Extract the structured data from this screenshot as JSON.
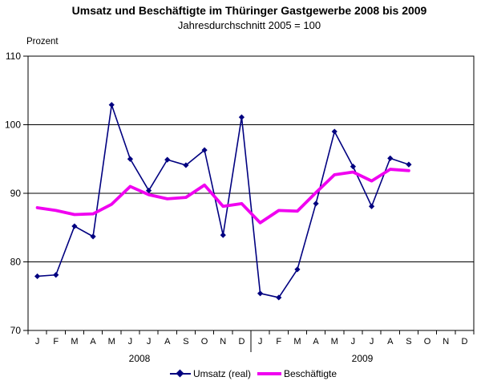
{
  "header": {
    "title": "Umsatz und Beschäftigte im Thüringer Gastgewerbe 2008 bis 2009",
    "subtitle": "Jahresdurchschnitt 2005 = 100"
  },
  "chart_data": {
    "type": "line",
    "title": "Umsatz und Beschäftigte im Thüringer Gastgewerbe 2008 bis 2009",
    "subtitle": "Jahresdurchschnitt 2005 = 100",
    "y_axis_label": "Prozent",
    "ylim": [
      70,
      110
    ],
    "yticks": [
      70,
      80,
      90,
      100,
      110
    ],
    "gridlines": [
      80,
      90,
      100
    ],
    "grid": "horizontal",
    "legend_position": "bottom",
    "months": [
      "J",
      "F",
      "M",
      "A",
      "M",
      "J",
      "J",
      "A",
      "S",
      "O",
      "N",
      "D",
      "J",
      "F",
      "M",
      "A",
      "M",
      "J",
      "J",
      "A",
      "S",
      "O",
      "N",
      "D"
    ],
    "year_labels": [
      {
        "label": "2008"
      },
      {
        "label": "2009"
      }
    ],
    "series": [
      {
        "name": "Umsatz (real)",
        "color": "#000080",
        "marker": "diamond",
        "values": [
          77.9,
          78.1,
          85.2,
          83.7,
          102.9,
          95.0,
          90.4,
          94.9,
          94.1,
          96.3,
          83.9,
          101.1,
          75.4,
          74.8,
          78.9,
          88.5,
          99.0,
          93.9,
          88.1,
          95.1,
          94.2,
          null,
          null,
          null
        ]
      },
      {
        "name": "Beschäftigte",
        "color": "#F000F0",
        "marker": "none",
        "values": [
          87.9,
          87.5,
          86.9,
          87.0,
          88.4,
          91.0,
          89.8,
          89.2,
          89.4,
          91.2,
          88.1,
          88.5,
          85.7,
          87.5,
          87.4,
          90.1,
          92.7,
          93.1,
          91.8,
          93.5,
          93.3,
          null,
          null,
          null
        ]
      }
    ]
  }
}
